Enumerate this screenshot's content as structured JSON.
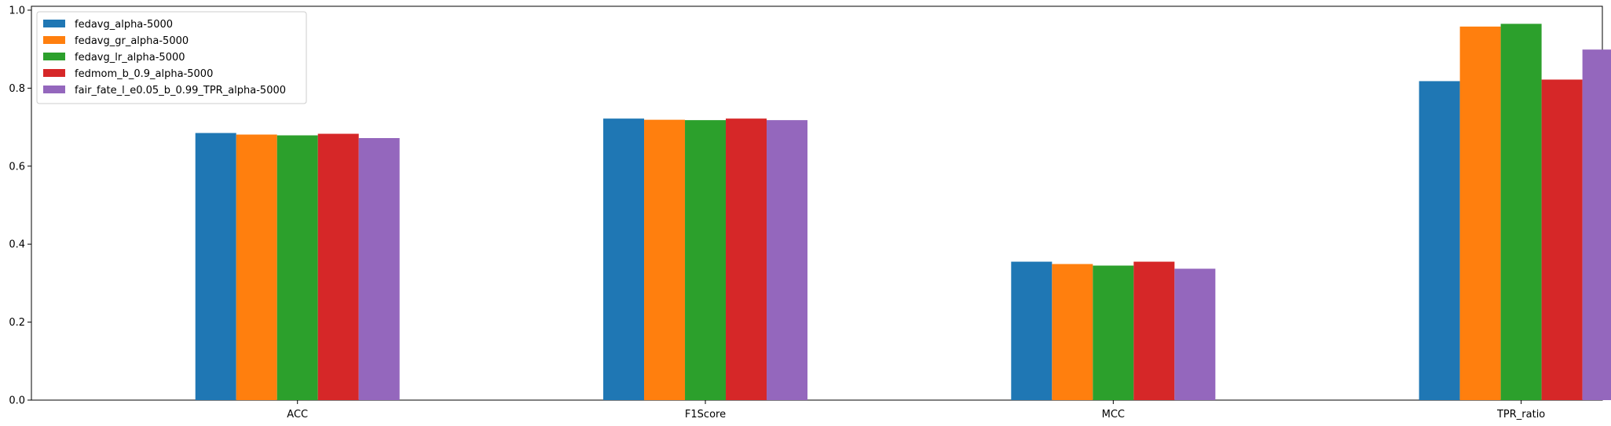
{
  "chart_data": {
    "type": "bar",
    "categories": [
      "ACC",
      "F1Score",
      "MCC",
      "TPR_ratio"
    ],
    "series": [
      {
        "name": "fedavg_alpha-5000",
        "color": "#1f77b4",
        "values": [
          0.685,
          0.722,
          0.355,
          0.818
        ]
      },
      {
        "name": "fedavg_gr_alpha-5000",
        "color": "#ff7f0e",
        "values": [
          0.681,
          0.719,
          0.349,
          0.958
        ]
      },
      {
        "name": "fedavg_lr_alpha-5000",
        "color": "#2ca02c",
        "values": [
          0.679,
          0.718,
          0.345,
          0.965
        ]
      },
      {
        "name": "fedmom_b_0.9_alpha-5000",
        "color": "#d62728",
        "values": [
          0.683,
          0.722,
          0.355,
          0.822
        ]
      },
      {
        "name": "fair_fate_l_e0.05_b_0.99_TPR_alpha-5000",
        "color": "#9467bd",
        "values": [
          0.672,
          0.718,
          0.337,
          0.899
        ]
      }
    ],
    "yticks": [
      "0.0",
      "0.2",
      "0.4",
      "0.6",
      "0.8",
      "1.0"
    ],
    "ylim": [
      0,
      1.01
    ],
    "legend_position": "top-left",
    "grid": false
  }
}
